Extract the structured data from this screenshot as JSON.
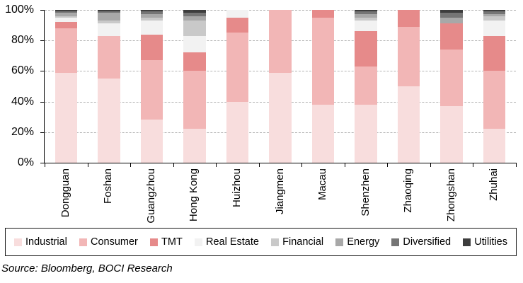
{
  "source": "Source: Bloomberg, BOCI Research",
  "chart_data": {
    "type": "bar",
    "stacked": true,
    "unit": "percent of total",
    "title": "",
    "xlabel": "",
    "ylabel": "",
    "ylim": [
      0,
      100
    ],
    "grid": "horizontal dashed every 20%",
    "legend_position": "bottom boxed",
    "y_ticks": [
      "100%",
      "80%",
      "60%",
      "40%",
      "20%",
      "0%"
    ],
    "categories": [
      "Dongguan",
      "Foshan",
      "Guangzhou",
      "Hong Kong",
      "Huizhou",
      "Jiangmen",
      "Macau",
      "Shenzhen",
      "Zhaoqing",
      "Zhongshan",
      "Zhuhai"
    ],
    "series": [
      {
        "name": "Industrial",
        "color": "#f8dddd",
        "values": [
          59,
          55,
          28,
          22,
          40,
          59,
          38,
          38,
          50,
          37,
          22
        ]
      },
      {
        "name": "Consumer",
        "color": "#f2b6b6",
        "values": [
          29,
          28,
          39,
          38,
          45,
          41,
          57,
          25,
          39,
          37,
          38
        ]
      },
      {
        "name": "TMT",
        "color": "#e68a8a",
        "values": [
          4,
          0,
          17,
          12,
          10,
          0,
          5,
          23,
          11,
          17,
          23
        ]
      },
      {
        "name": "Real Estate",
        "color": "#f2f2f2",
        "values": [
          3,
          8,
          9,
          11,
          5,
          0,
          0,
          7,
          0,
          0,
          10
        ]
      },
      {
        "name": "Financial",
        "color": "#c9c9c9",
        "values": [
          1,
          2,
          2,
          10,
          0,
          0,
          0,
          2,
          0,
          0,
          3
        ]
      },
      {
        "name": "Energy",
        "color": "#a8a8a8",
        "values": [
          2,
          5,
          2,
          3,
          0,
          0,
          0,
          2,
          0,
          4,
          1
        ]
      },
      {
        "name": "Diversified",
        "color": "#757575",
        "values": [
          1,
          1,
          2,
          2,
          0,
          0,
          0,
          2,
          0,
          3,
          2
        ]
      },
      {
        "name": "Utilities",
        "color": "#3d3d3d",
        "values": [
          1,
          1,
          1,
          2,
          0,
          0,
          0,
          1,
          0,
          2,
          1
        ]
      }
    ]
  }
}
